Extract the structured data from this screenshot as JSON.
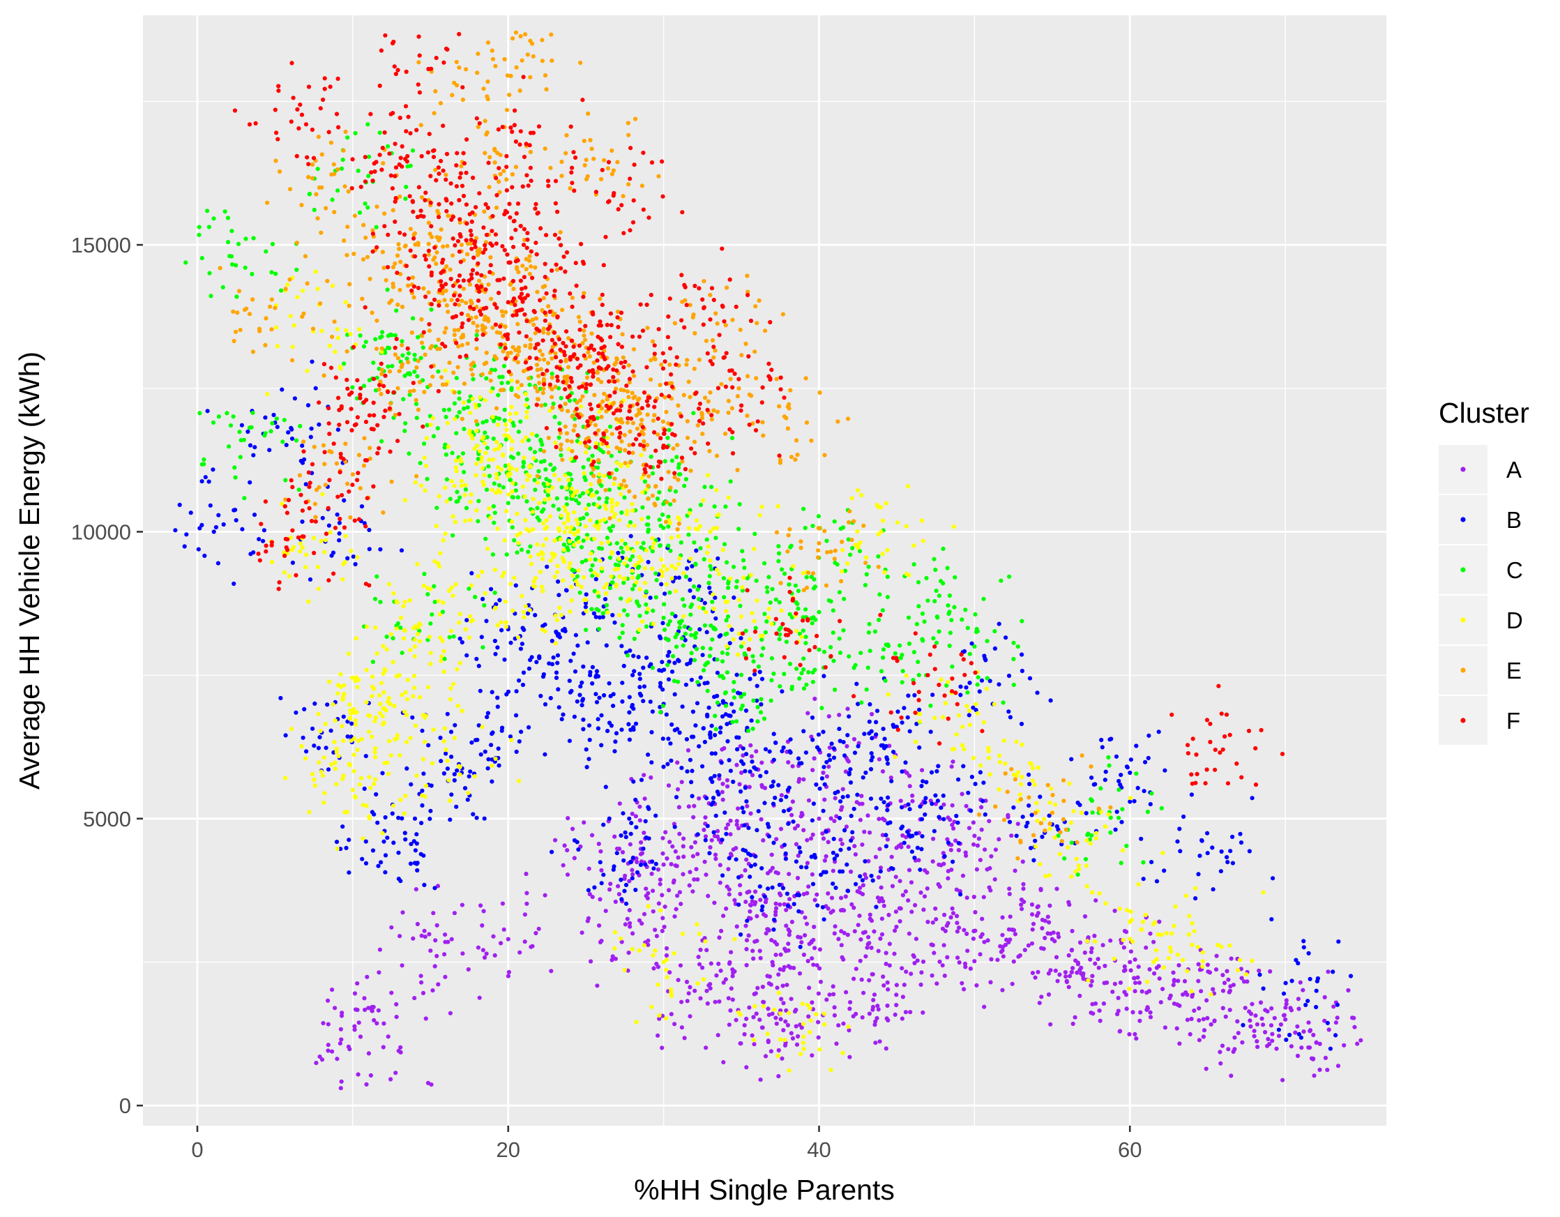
{
  "chart_data": {
    "type": "scatter",
    "title": "",
    "xlabel": "%HH Single Parents",
    "ylabel": "Average HH Vehicle Energy (kWh)",
    "xlim": [
      -3.5,
      76.5
    ],
    "ylim": [
      -350,
      19000
    ],
    "x_ticks": [
      0,
      20,
      40,
      60
    ],
    "x_tick_labels": [
      "0",
      "20",
      "40",
      "60"
    ],
    "y_ticks": [
      0,
      5000,
      10000,
      15000
    ],
    "y_tick_labels": [
      "0",
      "5000",
      "10000",
      "15000"
    ],
    "x_minor_ticks": [
      10,
      30,
      50,
      70
    ],
    "y_minor_ticks": [
      2500,
      7500,
      12500,
      17500
    ],
    "grid": true,
    "panel_background": "#ebebeb",
    "gridline_color": "#ffffff",
    "legend": {
      "title": "Cluster",
      "position": "right"
    },
    "series": [
      {
        "name": "A",
        "color": "#a020f0",
        "x": [
          35,
          38,
          33,
          41,
          44,
          37,
          30,
          47,
          52,
          40,
          36,
          34,
          39,
          43,
          31,
          55,
          48,
          58,
          62,
          66,
          70,
          72,
          29,
          26,
          20,
          15,
          11,
          10.5,
          42,
          45,
          50,
          53,
          57,
          60,
          64,
          68,
          46,
          49,
          37,
          32,
          28,
          35,
          41,
          38
        ],
        "y": [
          4000,
          3500,
          4500,
          3000,
          3800,
          2500,
          4200,
          3200,
          2800,
          5000,
          3300,
          2200,
          4800,
          2600,
          5200,
          2900,
          4400,
          2400,
          1800,
          2000,
          1500,
          1100,
          3700,
          4100,
          2900,
          2700,
          1700,
          1200,
          1800,
          2100,
          4700,
          3500,
          2300,
          2500,
          1900,
          1300,
          5400,
          3100,
          1600,
          2000,
          3000,
          5800,
          6200,
          1400
        ]
      },
      {
        "name": "B",
        "color": "#0000ff",
        "x": [
          30,
          33,
          28,
          35,
          38,
          26,
          24,
          32,
          40,
          43,
          22,
          20,
          36,
          29,
          45,
          48,
          51,
          27,
          25,
          31,
          34,
          19,
          17,
          14,
          12,
          37,
          41,
          46,
          55,
          60,
          65,
          72,
          2.5,
          5,
          9,
          8
        ],
        "y": [
          7000,
          6500,
          7500,
          6000,
          5500,
          6800,
          7200,
          8000,
          6200,
          5800,
          7800,
          8300,
          4800,
          5200,
          6600,
          5400,
          7400,
          4400,
          8800,
          9200,
          7000,
          6500,
          5800,
          5000,
          4600,
          3800,
          4300,
          4700,
          4900,
          5800,
          4400,
          2000,
          10200,
          11900,
          10300,
          6500
        ]
      },
      {
        "name": "C",
        "color": "#00ff00",
        "x": [
          25,
          22,
          28,
          24,
          30,
          20,
          27,
          32,
          18,
          26,
          23,
          35,
          37,
          19,
          21,
          29,
          33,
          16,
          14,
          12,
          40,
          42,
          39,
          45,
          31,
          34,
          15,
          11,
          2.2,
          3,
          47,
          50,
          58
        ],
        "y": [
          9500,
          10200,
          9000,
          11000,
          8500,
          10500,
          9800,
          8200,
          11500,
          10800,
          12000,
          8000,
          9000,
          12500,
          11200,
          10000,
          9400,
          12000,
          13000,
          12800,
          8600,
          9600,
          7600,
          7800,
          11000,
          7200,
          8400,
          16200,
          14800,
          11600,
          8800,
          8000,
          5100
        ]
      },
      {
        "name": "D",
        "color": "#ffff00",
        "x": [
          22,
          20,
          24,
          18,
          26,
          17,
          23,
          19,
          25,
          28,
          15,
          14,
          13,
          12,
          11,
          10,
          21,
          27,
          30,
          33,
          16,
          36,
          44,
          49,
          53,
          56,
          60,
          64,
          7,
          8,
          10.3,
          30,
          39
        ],
        "y": [
          10500,
          11000,
          10000,
          11500,
          9800,
          10800,
          9600,
          12000,
          10400,
          9200,
          9000,
          8000,
          7500,
          7200,
          6800,
          5500,
          8600,
          11200,
          9400,
          10000,
          6200,
          8800,
          10000,
          6800,
          5600,
          4500,
          3200,
          2800,
          9600,
          13500,
          6200,
          2500,
          1200
        ]
      },
      {
        "name": "E",
        "color": "#ffa500",
        "x": [
          22,
          20,
          24,
          18,
          26,
          21,
          23,
          19,
          25,
          28,
          17,
          16,
          15,
          14,
          30,
          32,
          27,
          29,
          13,
          12,
          18,
          20.5,
          18.5,
          25.5,
          34,
          38,
          40,
          5,
          8,
          10,
          55
        ],
        "y": [
          13000,
          14000,
          12500,
          13500,
          12000,
          12800,
          13800,
          14500,
          11500,
          12200,
          15000,
          14200,
          13200,
          15200,
          11800,
          12400,
          13000,
          10800,
          12800,
          14600,
          18000,
          18700,
          16600,
          16500,
          13600,
          11800,
          9800,
          13900,
          16000,
          11000,
          5100
        ]
      },
      {
        "name": "F",
        "color": "#ff0000",
        "x": [
          20,
          22,
          18,
          24,
          21,
          19,
          23,
          17,
          25,
          26,
          16,
          15,
          14,
          13,
          12,
          27,
          28,
          29,
          30,
          33,
          35,
          14.3,
          7,
          20.5,
          6.5,
          8.5,
          10.5,
          65.5,
          47,
          38,
          26.8
        ],
        "y": [
          14000,
          13500,
          14500,
          13000,
          15000,
          15500,
          14200,
          13800,
          12500,
          13200,
          15800,
          16200,
          14800,
          16400,
          12000,
          11800,
          13400,
          12200,
          11500,
          13700,
          12200,
          18300,
          17100,
          16800,
          9900,
          10900,
          12500,
          6200,
          7500,
          8200,
          15900
        ]
      }
    ]
  }
}
